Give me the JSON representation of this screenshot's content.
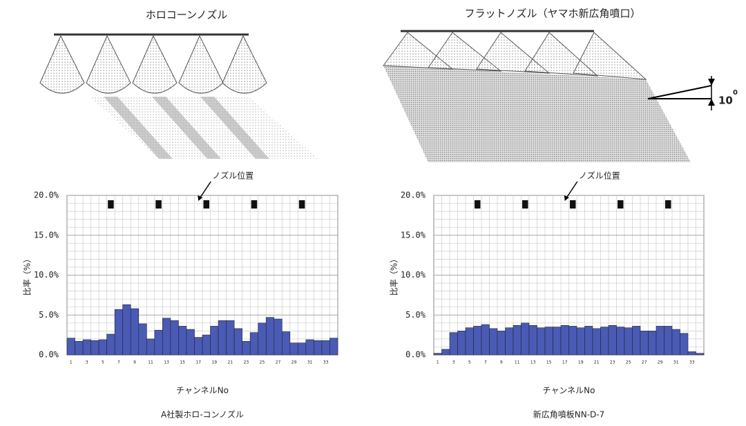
{
  "illustrations": {
    "left_title": "ホロコーンノズル",
    "right_title": "フラットノズル（ヤマホ新広角噴口）",
    "angle_label": "10",
    "angle_sup": "0"
  },
  "chart_data": [
    {
      "type": "bar",
      "annotation": "ノズル位置",
      "x_label": "チャンネルNo",
      "y_label": "比率（%）",
      "caption": "A社製ホロ-コンノズル",
      "categories": [
        "1",
        null,
        "3",
        null,
        "5",
        null,
        "7",
        null,
        "9",
        null,
        "11",
        null,
        "13",
        null,
        "15",
        null,
        "17",
        null,
        "19",
        null,
        "21",
        null,
        "23",
        null,
        "25",
        null,
        "27",
        null,
        "29",
        null,
        "31",
        null,
        "33",
        null
      ],
      "values": [
        2.1,
        1.7,
        1.9,
        1.8,
        1.9,
        2.6,
        5.7,
        6.3,
        5.8,
        3.9,
        2.0,
        3.1,
        4.6,
        4.3,
        3.6,
        3.2,
        2.2,
        2.5,
        3.6,
        4.3,
        4.3,
        3.3,
        1.7,
        2.8,
        4.0,
        4.7,
        4.5,
        2.9,
        1.5,
        1.5,
        1.9,
        1.8,
        1.8,
        2.1
      ],
      "color": "#4a5bb5",
      "ylim": [
        0,
        20
      ],
      "yticks": [
        {
          "value": 0,
          "label": "0.0%"
        },
        {
          "value": 5,
          "label": "5.0%"
        },
        {
          "value": 10,
          "label": "10.0%"
        },
        {
          "value": 15,
          "label": "15.0%"
        },
        {
          "value": 20,
          "label": "20.0%"
        }
      ],
      "grid": true
    },
    {
      "type": "bar",
      "annotation": "ノズル位置",
      "x_label": "チャンネルNo",
      "y_label": "比率（%）",
      "caption": "新広角噴板NN-D-7",
      "categories": [
        "1",
        null,
        "3",
        null,
        "5",
        null,
        "7",
        null,
        "9",
        null,
        "11",
        null,
        "13",
        null,
        "15",
        null,
        "17",
        null,
        "19",
        null,
        "21",
        null,
        "23",
        null,
        "25",
        null,
        "27",
        null,
        "29",
        null,
        "31",
        null,
        "33",
        null
      ],
      "values": [
        0.2,
        0.7,
        2.8,
        3.0,
        3.4,
        3.6,
        3.8,
        3.3,
        3.0,
        3.4,
        3.7,
        4.0,
        3.7,
        3.4,
        3.5,
        3.5,
        3.7,
        3.6,
        3.4,
        3.6,
        3.3,
        3.5,
        3.7,
        3.5,
        3.4,
        3.6,
        3.0,
        3.0,
        3.6,
        3.6,
        3.2,
        2.7,
        0.4,
        0.2
      ],
      "color": "#4a5bb5",
      "ylim": [
        0,
        20
      ],
      "yticks": [
        {
          "value": 0,
          "label": "0.0%"
        },
        {
          "value": 5,
          "label": "5.0%"
        },
        {
          "value": 10,
          "label": "10.0%"
        },
        {
          "value": 15,
          "label": "15.0%"
        },
        {
          "value": 20,
          "label": "20.0%"
        }
      ],
      "grid": true
    }
  ]
}
